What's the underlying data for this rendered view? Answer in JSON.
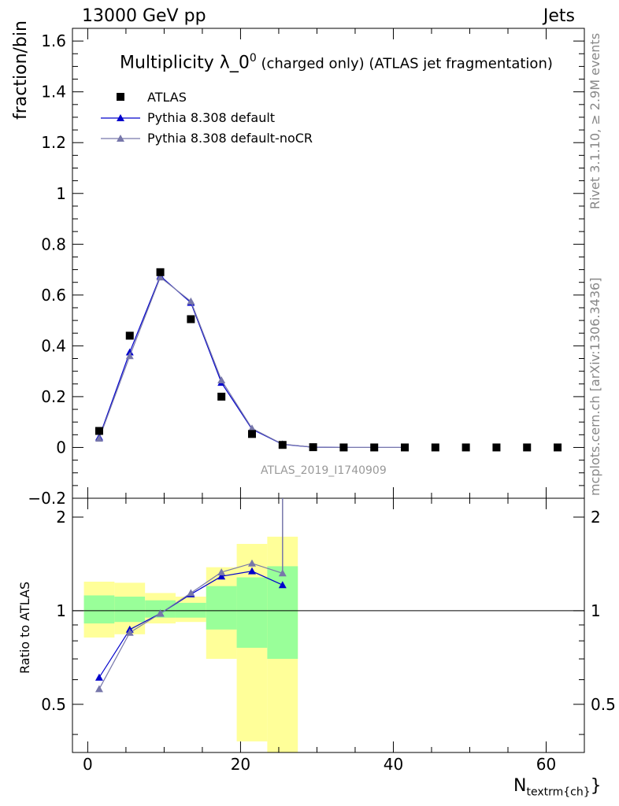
{
  "header": {
    "left": "13000 GeV pp",
    "right": "Jets"
  },
  "title": {
    "main": "Multiplicity λ_0",
    "sup": "0",
    "rest": " (charged only) (ATLAS jet fragmentation)"
  },
  "axes": {
    "ylabel_main": "fraction/bin",
    "ylabel_ratio": "Ratio to ATLAS",
    "xlabel_main": "N",
    "xlabel_sub": "textrm{ch}",
    "xlabel_tail": "}"
  },
  "side_text": {
    "rivet": "Rivet 3.1.10, ≥ 2.9M events",
    "mcplots": "mcplots.cern.ch [arXiv:1306.3436]"
  },
  "watermark": "ATLAS_2019_I1740909",
  "legend": [
    {
      "name": "ATLAS",
      "marker": "square",
      "color": "#000000"
    },
    {
      "name": "Pythia 8.308 default",
      "marker": "triangle",
      "color": "#0000cc"
    },
    {
      "name": "Pythia 8.308 default-noCR",
      "marker": "triangle",
      "color": "#7777aa"
    }
  ],
  "chart_data": {
    "type": "line",
    "xlim": [
      -2,
      65
    ],
    "ylim_main": [
      -0.2,
      1.65
    ],
    "ylim_ratio": [
      0.35,
      2.3
    ],
    "x_ticks": [
      "0",
      "20",
      "40",
      "60"
    ],
    "y_ticks_main": [
      "−0.2",
      "0",
      "0.2",
      "0.4",
      "0.6",
      "0.8",
      "1",
      "1.2",
      "1.4",
      "1.6"
    ],
    "y_ticks_ratio": [
      "0.5",
      "1",
      "2"
    ],
    "data_series": {
      "name": "ATLAS",
      "x": [
        1.5,
        5.5,
        9.5,
        13.5,
        17.5,
        21.5,
        25.5,
        29.5,
        33.5,
        37.5,
        41.5,
        45.5,
        49.5,
        53.5,
        57.5,
        61.5
      ],
      "y": [
        0.065,
        0.44,
        0.69,
        0.505,
        0.2,
        0.053,
        0.01,
        0.001,
        0.0,
        0.0,
        0.0,
        0.0,
        0.0,
        0.0,
        0.0,
        0.0
      ]
    },
    "series": [
      {
        "name": "Pythia 8.308 default",
        "x": [
          1.5,
          5.5,
          9.5,
          13.5,
          17.5,
          21.5,
          25.5,
          29.5,
          33.5,
          37.5,
          41.5
        ],
        "y": [
          0.04,
          0.375,
          0.675,
          0.57,
          0.255,
          0.072,
          0.012,
          0.001,
          0.0,
          0.0,
          0.0
        ],
        "ratio": [
          0.61,
          0.87,
          0.98,
          1.13,
          1.29,
          1.34,
          1.21
        ]
      },
      {
        "name": "Pythia 8.308 default-noCR",
        "x": [
          1.5,
          5.5,
          9.5,
          13.5,
          17.5,
          21.5,
          25.5,
          29.5,
          33.5,
          37.5,
          41.5
        ],
        "y": [
          0.035,
          0.36,
          0.67,
          0.575,
          0.265,
          0.075,
          0.013,
          0.001,
          0.0,
          0.0,
          0.0
        ],
        "ratio": [
          0.56,
          0.85,
          0.98,
          1.14,
          1.33,
          1.42,
          1.32
        ]
      }
    ],
    "ratio_bands": {
      "x_edges": [
        -0.5,
        3.5,
        7.5,
        11.5,
        15.5,
        19.5,
        23.5,
        27.5
      ],
      "yellow_low": [
        0.82,
        0.84,
        0.91,
        0.92,
        0.7,
        0.38,
        0.35
      ],
      "yellow_high": [
        1.24,
        1.23,
        1.14,
        1.11,
        1.38,
        1.64,
        1.73
      ],
      "green_low": [
        0.91,
        0.92,
        0.95,
        0.95,
        0.87,
        0.76,
        0.7
      ],
      "green_high": [
        1.12,
        1.11,
        1.08,
        1.06,
        1.2,
        1.28,
        1.39
      ]
    }
  }
}
